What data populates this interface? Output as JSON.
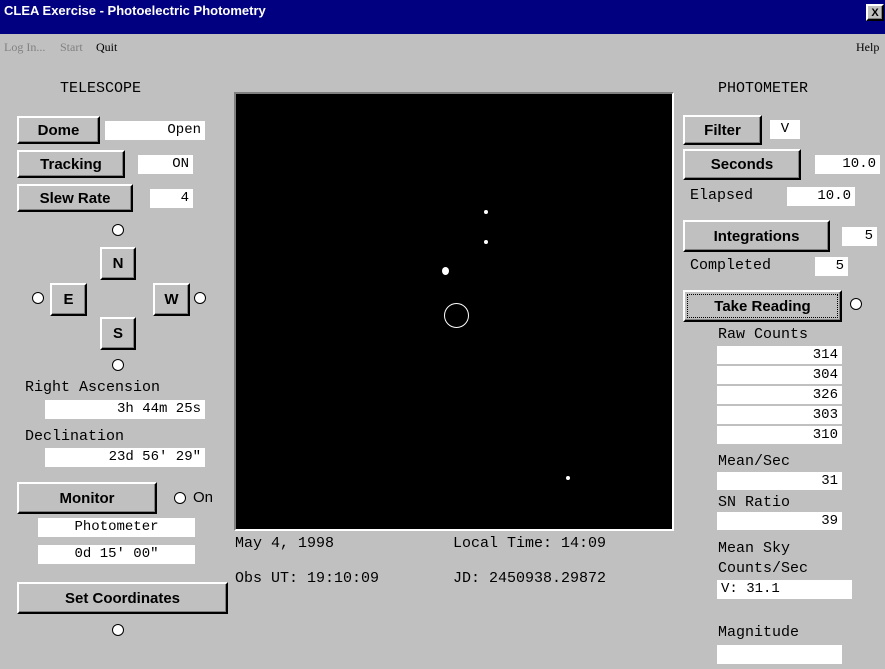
{
  "window": {
    "title": "CLEA Exercise - Photoelectric Photometry",
    "close": "X"
  },
  "menu": {
    "items": [
      "Log In...",
      "Start",
      "Quit"
    ],
    "help": "Help"
  },
  "telescope": {
    "heading": "TELESCOPE",
    "dome": {
      "button": "Dome",
      "value": "Open"
    },
    "tracking": {
      "button": "Tracking",
      "value": "ON"
    },
    "slew_rate": {
      "button": "Slew Rate",
      "value": "4"
    },
    "directions": {
      "north": "N",
      "east": "E",
      "west": "W",
      "south": "S"
    },
    "right_ascension": {
      "label": "Right Ascension",
      "value": "3h 44m 25s"
    },
    "declination": {
      "label": "Declination",
      "value": "23d 56' 29\""
    },
    "monitor": {
      "button": "Monitor",
      "indicator": "On",
      "instrument": "Photometer",
      "field": "0d 15' 00\""
    },
    "set_coordinates": "Set Coordinates"
  },
  "sky_view": {
    "date": "May 4, 1998",
    "local_time": "Local Time: 14:09",
    "obs_ut": "Obs UT: 19:10:09",
    "jd": "JD: 2450938.29872"
  },
  "photometer": {
    "heading": "PHOTOMETER",
    "filter": {
      "button": "Filter",
      "value": "V"
    },
    "seconds": {
      "button": "Seconds",
      "value": "10.0"
    },
    "elapsed": {
      "label": "Elapsed",
      "value": "10.0"
    },
    "integrations": {
      "button": "Integrations",
      "value": 5
    },
    "completed": {
      "label": "Completed",
      "value": 5
    },
    "take_reading": "Take Reading",
    "raw_counts": {
      "label": "Raw Counts",
      "values": [
        314,
        304,
        326,
        303,
        310
      ]
    },
    "mean_sec": {
      "label": "Mean/Sec",
      "value": 31
    },
    "sn_ratio": {
      "label": "SN Ratio",
      "value": 39
    },
    "mean_sky": {
      "label_1": "Mean Sky",
      "label_2": "Counts/Sec",
      "value": "V: 31.1"
    },
    "magnitude": {
      "label": "Magnitude"
    }
  }
}
